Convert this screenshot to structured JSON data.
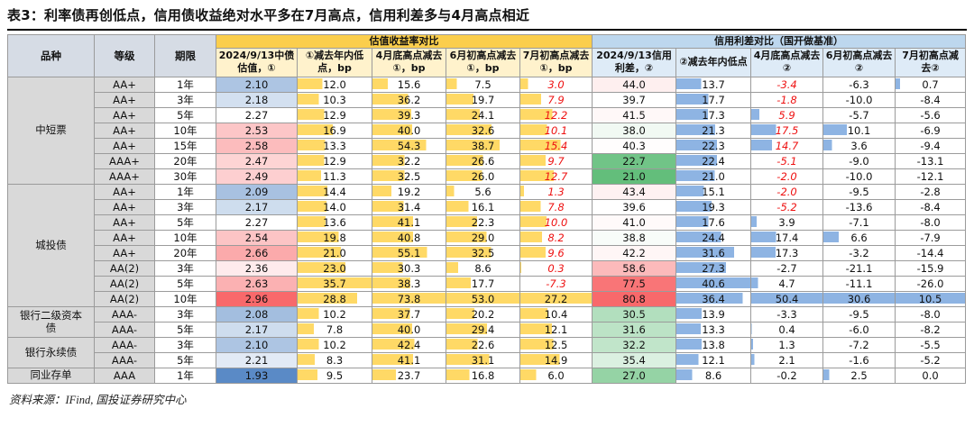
{
  "title": "表3：利率债再创低点，信用债收益绝对水平多在7月高点，信用利差多与4月高点相近",
  "source": "资料来源：IFind, 国投证券研究中心",
  "table": {
    "corner_headers": [
      "品种",
      "等级",
      "期限"
    ],
    "group_headers": [
      {
        "label": "估值收益率对比"
      },
      {
        "label": "信用利差对比（国开做基准）"
      }
    ],
    "value_headers": [
      "2024/9/13中债估值，①",
      "①减去年内低点，bp",
      "4月底高点减去①，bp",
      "6月初高点减去①，bp",
      "7月初高点减去①，bp",
      "2024/9/13信用利差，②",
      "②减去年内低点",
      "4月底高点减去②",
      "6月初高点减去②",
      "7月初高点减去②"
    ],
    "column_render": [
      "heat_bwr",
      "bar_yellow",
      "bar_yellow",
      "bar_yellow",
      "bar_yellow",
      "heat_gwr",
      "bar_blue",
      "bar_blue",
      "bar_blue",
      "bar_blue"
    ],
    "groups": [
      {
        "name": "中短票",
        "rows": [
          {
            "grade": "AA+",
            "term": "1年",
            "values": [
              "2.10",
              "12.0",
              "15.6",
              "7.5",
              "3.0",
              "44.0",
              "13.7",
              "-3.4",
              "-6.3",
              "0.7"
            ],
            "red": [
              4,
              7
            ]
          },
          {
            "grade": "AA+",
            "term": "3年",
            "values": [
              "2.18",
              "10.3",
              "36.2",
              "19.7",
              "7.9",
              "39.7",
              "17.7",
              "-1.8",
              "-10.0",
              "-8.4"
            ],
            "red": [
              4,
              7
            ]
          },
          {
            "grade": "AA+",
            "term": "5年",
            "values": [
              "2.27",
              "12.9",
              "39.3",
              "24.1",
              "12.2",
              "41.5",
              "17.3",
              "5.9",
              "-5.7",
              "-5.6"
            ],
            "red": [
              4,
              7
            ]
          },
          {
            "grade": "AA+",
            "term": "10年",
            "values": [
              "2.53",
              "16.9",
              "40.0",
              "32.6",
              "10.1",
              "38.0",
              "21.3",
              "17.5",
              "10.1",
              "-6.9"
            ],
            "red": [
              4,
              7
            ]
          },
          {
            "grade": "AA+",
            "term": "15年",
            "values": [
              "2.58",
              "13.3",
              "54.3",
              "38.7",
              "15.4",
              "40.3",
              "22.3",
              "14.7",
              "3.6",
              "-9.4"
            ],
            "red": [
              4,
              7
            ]
          },
          {
            "grade": "AAA+",
            "term": "20年",
            "values": [
              "2.47",
              "12.9",
              "32.2",
              "26.6",
              "9.7",
              "22.7",
              "22.4",
              "-5.1",
              "-9.0",
              "-13.1"
            ],
            "red": [
              4,
              7
            ]
          },
          {
            "grade": "AAA+",
            "term": "30年",
            "values": [
              "2.49",
              "11.3",
              "32.5",
              "26.0",
              "12.7",
              "21.0",
              "21.0",
              "-2.0",
              "-10.0",
              "-12.1"
            ],
            "red": [
              4,
              7
            ]
          }
        ]
      },
      {
        "name": "城投债",
        "rows": [
          {
            "grade": "AA+",
            "term": "1年",
            "values": [
              "2.09",
              "14.4",
              "19.2",
              "5.6",
              "1.3",
              "43.4",
              "15.1",
              "-2.0",
              "-9.5",
              "-2.8"
            ],
            "red": [
              4,
              7
            ]
          },
          {
            "grade": "AA+",
            "term": "3年",
            "values": [
              "2.17",
              "14.0",
              "31.4",
              "16.1",
              "7.8",
              "39.6",
              "19.3",
              "-5.2",
              "-13.6",
              "-8.4"
            ],
            "red": [
              4,
              7
            ]
          },
          {
            "grade": "AA+",
            "term": "5年",
            "values": [
              "2.27",
              "13.6",
              "41.1",
              "22.3",
              "10.0",
              "41.0",
              "17.6",
              "3.9",
              "-7.1",
              "-8.0"
            ],
            "red": [
              4
            ]
          },
          {
            "grade": "AA+",
            "term": "10年",
            "values": [
              "2.54",
              "19.8",
              "40.8",
              "29.0",
              "8.2",
              "38.8",
              "24.4",
              "17.4",
              "6.6",
              "-7.9"
            ],
            "red": [
              4
            ]
          },
          {
            "grade": "AA+",
            "term": "20年",
            "values": [
              "2.66",
              "21.0",
              "55.1",
              "32.5",
              "9.6",
              "42.2",
              "31.6",
              "17.3",
              "-3.2",
              "-14.4"
            ],
            "red": [
              4
            ]
          },
          {
            "grade": "AA(2)",
            "term": "3年",
            "values": [
              "2.36",
              "23.0",
              "30.3",
              "8.6",
              "0.3",
              "58.6",
              "27.3",
              "-2.7",
              "-21.1",
              "-15.9"
            ],
            "red": [
              4
            ]
          },
          {
            "grade": "AA(2)",
            "term": "5年",
            "values": [
              "2.63",
              "35.7",
              "38.3",
              "17.7",
              "-7.3",
              "77.5",
              "40.6",
              "4.7",
              "-11.1",
              "-26.0"
            ],
            "red": [
              4
            ]
          },
          {
            "grade": "AA(2)",
            "term": "10年",
            "values": [
              "2.96",
              "28.8",
              "73.8",
              "53.0",
              "27.2",
              "80.8",
              "36.4",
              "50.4",
              "30.6",
              "10.5"
            ],
            "red": []
          }
        ]
      },
      {
        "name": "银行二级资本债",
        "rows": [
          {
            "grade": "AAA-",
            "term": "3年",
            "values": [
              "2.08",
              "10.2",
              "37.7",
              "20.2",
              "10.4",
              "30.5",
              "13.9",
              "-3.3",
              "-9.5",
              "-8.0"
            ],
            "red": []
          },
          {
            "grade": "AAA-",
            "term": "5年",
            "values": [
              "2.17",
              "7.8",
              "40.0",
              "29.4",
              "12.1",
              "31.6",
              "13.3",
              "0.4",
              "-6.0",
              "-8.2"
            ],
            "red": []
          }
        ]
      },
      {
        "name": "银行永续债",
        "rows": [
          {
            "grade": "AAA-",
            "term": "3年",
            "values": [
              "2.10",
              "10.2",
              "42.4",
              "22.6",
              "12.5",
              "32.2",
              "13.8",
              "1.3",
              "-7.2",
              "-5.5"
            ],
            "red": []
          },
          {
            "grade": "AAA-",
            "term": "5年",
            "values": [
              "2.21",
              "8.3",
              "41.1",
              "31.1",
              "14.9",
              "35.4",
              "12.1",
              "2.1",
              "-1.6",
              "-5.2"
            ],
            "red": []
          }
        ]
      },
      {
        "name": "同业存单",
        "rows": [
          {
            "grade": "AAA",
            "term": "1年",
            "values": [
              "1.93",
              "9.5",
              "23.7",
              "16.8",
              "6.0",
              "27.0",
              "8.6",
              "-0.2",
              "2.5",
              "0.0"
            ],
            "red": []
          }
        ]
      }
    ],
    "colors": {
      "group_yellow": "#FBCE4C",
      "group_blue": "#BDD7EE",
      "sub_yellow": "#FFF2CC",
      "sub_blue": "#DEEBF7",
      "corner_header_bg": "#D6DCE5",
      "gray_cell_bg": "#D9D9D9",
      "bar_yellow": "#FFD966",
      "bar_blue": "#8EB4E3",
      "heat_low_blue": "#5A8AC6",
      "heat_mid": "#FFFFFF",
      "heat_high_red": "#F8696B",
      "heat_low_green": "#63BE7B",
      "red_text": "#EE1111"
    }
  }
}
